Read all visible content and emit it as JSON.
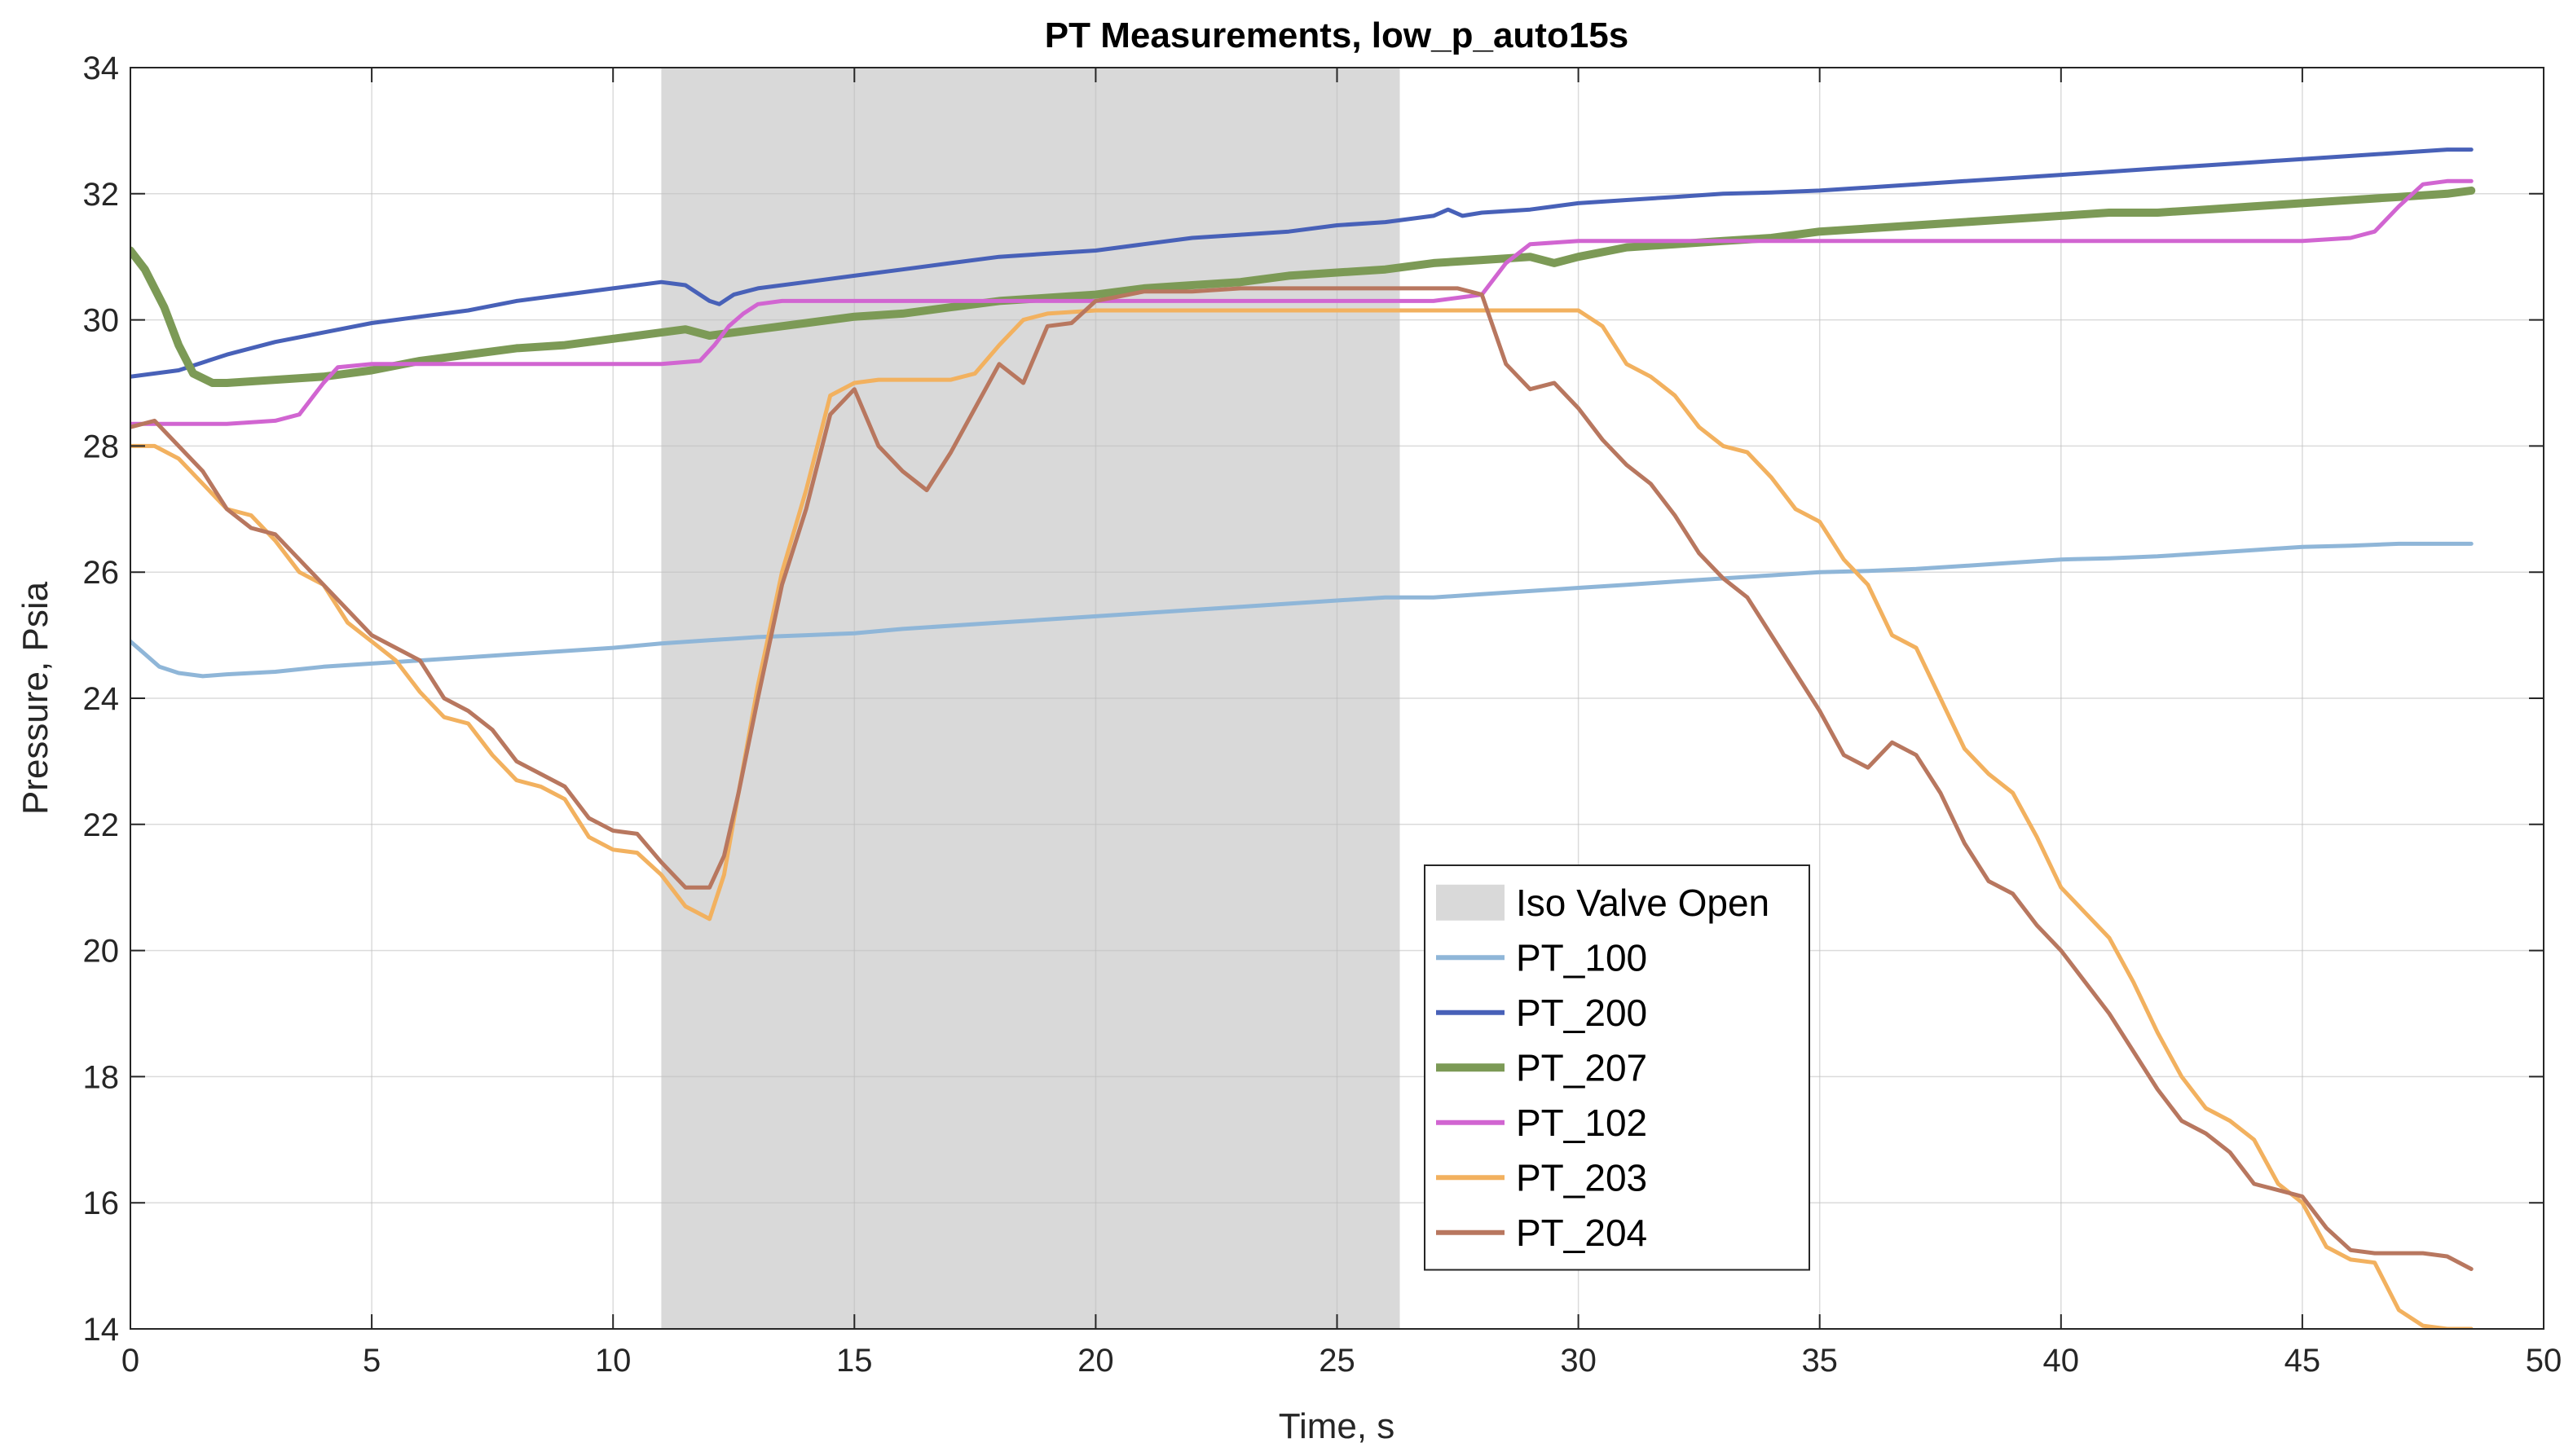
{
  "chart_data": {
    "type": "line",
    "title": "PT Measurements, low_p_auto15s",
    "xlabel": "Time, s",
    "ylabel": "Pressure, Psia",
    "xlim": [
      0,
      50
    ],
    "ylim": [
      14,
      34
    ],
    "xticks": [
      0,
      5,
      10,
      15,
      20,
      25,
      30,
      35,
      40,
      45,
      50
    ],
    "yticks": [
      14,
      16,
      18,
      20,
      22,
      24,
      26,
      28,
      30,
      32,
      34
    ],
    "grid": true,
    "legend_position": "lower-center",
    "shaded_region": {
      "name": "Iso Valve Open",
      "x_start": 11.0,
      "x_end": 26.3,
      "color": "#d9d9d9"
    },
    "series": [
      {
        "name": "PT_100",
        "color": "#8fb6d8",
        "width": 5,
        "x": [
          0,
          0.3,
          0.6,
          1,
          1.5,
          2,
          3,
          4,
          5,
          6,
          7,
          8,
          9,
          10,
          11,
          12,
          13,
          14,
          15,
          16,
          17,
          18,
          19,
          20,
          21,
          22,
          23,
          24,
          25,
          26,
          27,
          28,
          29,
          30,
          31,
          32,
          33,
          34,
          35,
          36,
          37,
          38,
          39,
          40,
          41,
          42,
          43,
          44,
          45,
          46,
          47,
          48,
          48.5
        ],
        "y": [
          24.9,
          24.7,
          24.5,
          24.4,
          24.35,
          24.38,
          24.42,
          24.5,
          24.55,
          24.6,
          24.65,
          24.7,
          24.75,
          24.8,
          24.87,
          24.92,
          24.97,
          25.0,
          25.03,
          25.1,
          25.15,
          25.2,
          25.25,
          25.3,
          25.35,
          25.4,
          25.45,
          25.5,
          25.55,
          25.6,
          25.6,
          25.65,
          25.7,
          25.75,
          25.8,
          25.85,
          25.9,
          25.95,
          26.0,
          26.02,
          26.05,
          26.1,
          26.15,
          26.2,
          26.22,
          26.25,
          26.3,
          26.35,
          26.4,
          26.42,
          26.45,
          26.45,
          26.45
        ]
      },
      {
        "name": "PT_200",
        "color": "#4861b8",
        "width": 5,
        "x": [
          0,
          1,
          2,
          3,
          4,
          5,
          6,
          7,
          8,
          9,
          10,
          11,
          11.5,
          12,
          12.2,
          12.5,
          13,
          14,
          15,
          16,
          17,
          18,
          19,
          20,
          21,
          22,
          23,
          24,
          25,
          26,
          27,
          27.3,
          27.6,
          28,
          29,
          30,
          31,
          32,
          33,
          34,
          35,
          36,
          37,
          38,
          39,
          40,
          41,
          42,
          43,
          44,
          45,
          46,
          47,
          48,
          48.5
        ],
        "y": [
          29.1,
          29.2,
          29.45,
          29.65,
          29.8,
          29.95,
          30.05,
          30.15,
          30.3,
          30.4,
          30.5,
          30.6,
          30.55,
          30.3,
          30.25,
          30.4,
          30.5,
          30.6,
          30.7,
          30.8,
          30.9,
          31.0,
          31.05,
          31.1,
          31.2,
          31.3,
          31.35,
          31.4,
          31.5,
          31.55,
          31.65,
          31.75,
          31.65,
          31.7,
          31.75,
          31.85,
          31.9,
          31.95,
          32.0,
          32.02,
          32.05,
          32.1,
          32.15,
          32.2,
          32.25,
          32.3,
          32.35,
          32.4,
          32.45,
          32.5,
          32.55,
          32.6,
          32.65,
          32.7,
          32.7
        ]
      },
      {
        "name": "PT_207",
        "color": "#7c9a56",
        "width": 10,
        "x": [
          0,
          0.3,
          0.7,
          1,
          1.3,
          1.7,
          2,
          3,
          4,
          5,
          6,
          7,
          8,
          9,
          10,
          11,
          11.5,
          12,
          13,
          14,
          15,
          16,
          17,
          18,
          19,
          20,
          21,
          22,
          23,
          24,
          25,
          26,
          27,
          28,
          29,
          29.5,
          30,
          31,
          32,
          33,
          34,
          35,
          36,
          37,
          38,
          39,
          40,
          41,
          42,
          43,
          44,
          45,
          46,
          47,
          48,
          48.5
        ],
        "y": [
          31.1,
          30.8,
          30.2,
          29.6,
          29.15,
          29.0,
          29.0,
          29.05,
          29.1,
          29.2,
          29.35,
          29.45,
          29.55,
          29.6,
          29.7,
          29.8,
          29.85,
          29.75,
          29.85,
          29.95,
          30.05,
          30.1,
          30.2,
          30.3,
          30.35,
          30.4,
          30.5,
          30.55,
          30.6,
          30.7,
          30.75,
          30.8,
          30.9,
          30.95,
          31.0,
          30.9,
          31.0,
          31.15,
          31.2,
          31.25,
          31.3,
          31.4,
          31.45,
          31.5,
          31.55,
          31.6,
          31.65,
          31.7,
          31.7,
          31.75,
          31.8,
          31.85,
          31.9,
          31.95,
          32.0,
          32.05
        ]
      },
      {
        "name": "PT_102",
        "color": "#d165d1",
        "width": 5,
        "x": [
          0,
          1,
          2,
          3,
          3.5,
          4,
          4.3,
          5,
          6,
          7,
          8,
          9,
          10,
          11,
          11.8,
          12.1,
          12.4,
          12.7,
          13,
          13.5,
          14,
          15,
          16,
          17,
          18,
          19,
          20,
          21,
          22,
          23,
          24,
          25,
          26,
          27,
          28,
          28.5,
          29,
          30,
          31,
          32,
          33,
          34,
          35,
          36,
          37,
          38,
          39,
          40,
          41,
          42,
          43,
          44,
          45,
          46,
          46.5,
          47,
          47.5,
          48,
          48.5
        ],
        "y": [
          28.35,
          28.35,
          28.35,
          28.4,
          28.5,
          29.0,
          29.25,
          29.3,
          29.3,
          29.3,
          29.3,
          29.3,
          29.3,
          29.3,
          29.35,
          29.6,
          29.9,
          30.1,
          30.25,
          30.3,
          30.3,
          30.3,
          30.3,
          30.3,
          30.3,
          30.3,
          30.3,
          30.3,
          30.3,
          30.3,
          30.3,
          30.3,
          30.3,
          30.3,
          30.4,
          30.9,
          31.2,
          31.25,
          31.25,
          31.25,
          31.25,
          31.25,
          31.25,
          31.25,
          31.25,
          31.25,
          31.25,
          31.25,
          31.25,
          31.25,
          31.25,
          31.25,
          31.25,
          31.3,
          31.4,
          31.8,
          32.15,
          32.2,
          32.2
        ]
      },
      {
        "name": "PT_203",
        "color": "#f2b15f",
        "width": 5,
        "x": [
          0,
          0.5,
          1,
          1.5,
          2,
          2.5,
          3,
          3.5,
          4,
          4.5,
          5,
          5.5,
          6,
          6.5,
          7,
          7.5,
          8,
          8.5,
          9,
          9.5,
          10,
          10.5,
          11,
          11.5,
          12,
          12.3,
          12.6,
          13,
          13.5,
          14,
          14.5,
          15,
          15.5,
          16,
          17,
          17.5,
          18,
          18.5,
          19,
          20,
          21,
          22,
          23,
          24,
          25,
          26,
          27,
          28,
          29,
          30,
          30.5,
          31,
          31.5,
          32,
          32.5,
          33,
          33.5,
          34,
          34.5,
          35,
          35.5,
          36,
          36.5,
          37,
          37.5,
          38,
          38.5,
          39,
          39.5,
          40,
          40.5,
          41,
          41.5,
          42,
          42.5,
          43,
          43.5,
          44,
          44.5,
          45,
          45.5,
          46,
          46.5,
          47,
          47.5,
          48,
          48.5
        ],
        "y": [
          28.0,
          28.0,
          27.8,
          27.4,
          27.0,
          26.9,
          26.5,
          26.0,
          25.8,
          25.2,
          24.9,
          24.6,
          24.1,
          23.7,
          23.6,
          23.1,
          22.7,
          22.6,
          22.4,
          21.8,
          21.6,
          21.55,
          21.2,
          20.7,
          20.5,
          21.2,
          22.5,
          24.2,
          26.0,
          27.3,
          28.8,
          29.0,
          29.05,
          29.05,
          29.05,
          29.15,
          29.6,
          30.0,
          30.1,
          30.15,
          30.15,
          30.15,
          30.15,
          30.15,
          30.15,
          30.15,
          30.15,
          30.15,
          30.15,
          30.15,
          29.9,
          29.3,
          29.1,
          28.8,
          28.3,
          28.0,
          27.9,
          27.5,
          27.0,
          26.8,
          26.2,
          25.8,
          25.0,
          24.8,
          24.0,
          23.2,
          22.8,
          22.5,
          21.8,
          21.0,
          20.6,
          20.2,
          19.5,
          18.7,
          18.0,
          17.5,
          17.3,
          17.0,
          16.3,
          16.0,
          15.3,
          15.1,
          15.05,
          14.3,
          14.05,
          14.0,
          14.0
        ]
      },
      {
        "name": "PT_204",
        "color": "#b8775f",
        "width": 5,
        "x": [
          0,
          0.5,
          1,
          1.5,
          2,
          2.5,
          3,
          3.5,
          4,
          4.5,
          5,
          5.5,
          6,
          6.5,
          7,
          7.5,
          8,
          8.5,
          9,
          9.5,
          10,
          10.5,
          11,
          11.5,
          12,
          12.3,
          12.6,
          13,
          13.5,
          14,
          14.5,
          15,
          15.5,
          16,
          16.5,
          17,
          17.5,
          18,
          18.5,
          19,
          19.5,
          20,
          21,
          22,
          23,
          24,
          25,
          26,
          27,
          27.5,
          28,
          28.5,
          29,
          29.5,
          30,
          30.5,
          31,
          31.5,
          32,
          32.5,
          33,
          33.5,
          34,
          34.5,
          35,
          35.5,
          36,
          36.5,
          37,
          37.5,
          38,
          38.5,
          39,
          39.5,
          40,
          40.5,
          41,
          41.5,
          42,
          42.5,
          43,
          43.5,
          44,
          44.5,
          45,
          45.5,
          46,
          46.5,
          47,
          47.5,
          48,
          48.5
        ],
        "y": [
          28.3,
          28.4,
          28.0,
          27.6,
          27.0,
          26.7,
          26.6,
          26.2,
          25.8,
          25.4,
          25.0,
          24.8,
          24.6,
          24.0,
          23.8,
          23.5,
          23.0,
          22.8,
          22.6,
          22.1,
          21.9,
          21.85,
          21.4,
          21.0,
          21.0,
          21.5,
          22.5,
          24.0,
          25.8,
          27.0,
          28.5,
          28.9,
          28.0,
          27.6,
          27.3,
          27.9,
          28.6,
          29.3,
          29.0,
          29.9,
          29.95,
          30.3,
          30.45,
          30.45,
          30.5,
          30.5,
          30.5,
          30.5,
          30.5,
          30.5,
          30.4,
          29.3,
          28.9,
          29.0,
          28.6,
          28.1,
          27.7,
          27.4,
          26.9,
          26.3,
          25.9,
          25.6,
          25.0,
          24.4,
          23.8,
          23.1,
          22.9,
          23.3,
          23.1,
          22.5,
          21.7,
          21.1,
          20.9,
          20.4,
          20.0,
          19.5,
          19.0,
          18.4,
          17.8,
          17.3,
          17.1,
          16.8,
          16.3,
          16.2,
          16.1,
          15.6,
          15.25,
          15.2,
          15.2,
          15.2,
          15.15,
          14.95
        ]
      }
    ]
  }
}
